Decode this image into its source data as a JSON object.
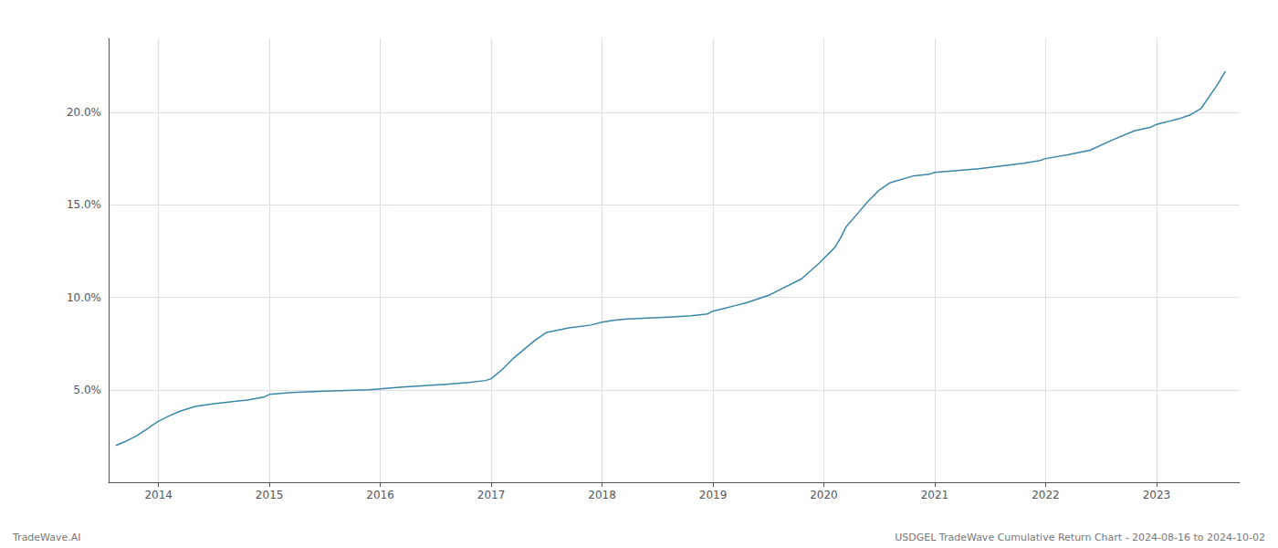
{
  "chart_data": {
    "type": "line",
    "annotations": [
      "TradeWave.AI",
      "USDGEL TradeWave Cumulative Return Chart - 2024-08-16 to 2024-10-02"
    ],
    "x": [
      2013.62,
      2013.7,
      2013.8,
      2013.9,
      2013.95,
      2014.0,
      2014.1,
      2014.2,
      2014.33,
      2014.5,
      2014.65,
      2014.8,
      2014.95,
      2015.0,
      2015.1,
      2015.2,
      2015.3,
      2015.5,
      2015.7,
      2015.9,
      2016.0,
      2016.1,
      2016.2,
      2016.4,
      2016.6,
      2016.8,
      2016.95,
      2017.0,
      2017.1,
      2017.2,
      2017.3,
      2017.4,
      2017.5,
      2017.7,
      2017.9,
      2018.0,
      2018.1,
      2018.2,
      2018.4,
      2018.6,
      2018.8,
      2018.95,
      2019.0,
      2019.1,
      2019.2,
      2019.3,
      2019.4,
      2019.5,
      2019.6,
      2019.8,
      2019.95,
      2020.0,
      2020.05,
      2020.1,
      2020.15,
      2020.2,
      2020.3,
      2020.4,
      2020.5,
      2020.6,
      2020.8,
      2020.95,
      2021.0,
      2021.2,
      2021.4,
      2021.6,
      2021.8,
      2021.95,
      2022.0,
      2022.2,
      2022.4,
      2022.6,
      2022.8,
      2022.95,
      2023.0,
      2023.1,
      2023.2,
      2023.3,
      2023.4,
      2023.55,
      2023.62
    ],
    "values": [
      2.0,
      2.2,
      2.5,
      2.9,
      3.1,
      3.3,
      3.6,
      3.85,
      4.1,
      4.25,
      4.35,
      4.45,
      4.6,
      4.75,
      4.8,
      4.85,
      4.88,
      4.92,
      4.96,
      5.0,
      5.05,
      5.1,
      5.15,
      5.22,
      5.3,
      5.4,
      5.5,
      5.6,
      6.1,
      6.7,
      7.2,
      7.7,
      8.1,
      8.35,
      8.5,
      8.65,
      8.75,
      8.82,
      8.88,
      8.93,
      9.0,
      9.1,
      9.25,
      9.4,
      9.55,
      9.7,
      9.9,
      10.1,
      10.4,
      11.0,
      11.8,
      12.1,
      12.4,
      12.7,
      13.2,
      13.8,
      14.5,
      15.2,
      15.8,
      16.2,
      16.55,
      16.65,
      16.75,
      16.85,
      16.95,
      17.1,
      17.25,
      17.4,
      17.5,
      17.7,
      17.95,
      18.5,
      19.0,
      19.2,
      19.35,
      19.5,
      19.65,
      19.85,
      20.2,
      21.5,
      22.2
    ],
    "color": "#3a86a8",
    "xlim": [
      2013.55,
      2023.75
    ],
    "xticks": [
      2014,
      2015,
      2016,
      2017,
      2018,
      2019,
      2020,
      2021,
      2022,
      2023
    ],
    "ylim": [
      0,
      24
    ],
    "yticks": [
      {
        "value": 5.0,
        "label": "5.0%"
      },
      {
        "value": 10.0,
        "label": "10.0%"
      },
      {
        "value": 15.0,
        "label": "15.0%"
      },
      {
        "value": 20.0,
        "label": "20.0%"
      }
    ],
    "grid": true
  }
}
